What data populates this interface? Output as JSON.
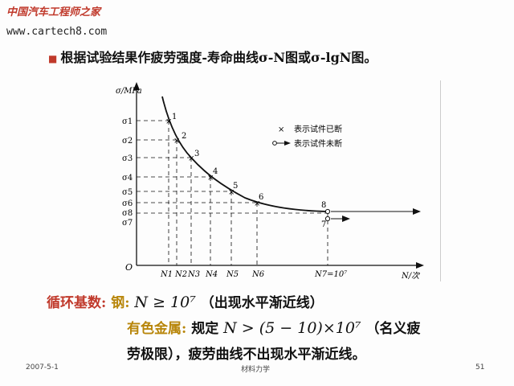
{
  "header": {
    "watermark": "中国汽车工程师之家",
    "url": "www.cartech8.com"
  },
  "bullet": {
    "icon": "square-bullet-icon",
    "text": "根据试验结果作疲劳强度-寿命曲线σ-N图或σ-lgN图。"
  },
  "figure": {
    "y_axis_label": "σ/MPa",
    "x_axis_label": "N/次",
    "origin": "O",
    "y_ticks": [
      "σ1",
      "σ2",
      "σ3",
      "σ4",
      "σ5",
      "σ6",
      "σ8",
      "σ7"
    ],
    "x_ticks": [
      "N1",
      "N2",
      "N3",
      "N4",
      "N5",
      "N6",
      "N7=10⁷"
    ],
    "point_labels": [
      "1",
      "2",
      "3",
      "4",
      "5",
      "6",
      "7",
      "8"
    ],
    "legend": [
      {
        "symbol": "×",
        "text": "表示试件已断"
      },
      {
        "symbol": "o→",
        "text": "表示试件未断"
      }
    ]
  },
  "body": {
    "line1_label": "循环基数:",
    "line1_steel": "钢:",
    "line1_formula": "N ≥ 10⁷",
    "line1_note": "（出现水平渐近线）",
    "line2_label": "有色金属:",
    "line2_text": "规定",
    "line2_formula": "N > (5 − 10)×10⁷",
    "line2_note": "（名义疲",
    "line3_text": "劳极限），疲劳曲线不出现水平渐近线。"
  },
  "footer": {
    "date": "2007-5-1",
    "center": "材料力学",
    "page": "51"
  },
  "colors": {
    "red_label": "#c0392b",
    "gold_label": "#b8860b"
  }
}
